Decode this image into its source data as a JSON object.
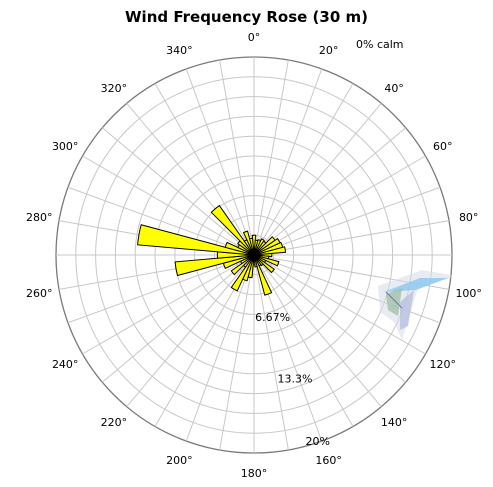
{
  "chart_data": {
    "type": "polar-bar",
    "title": "Wind Frequency Rose (30 m)",
    "calm_label": "0% calm",
    "angle_ticks": [
      "0°",
      "20°",
      "40°",
      "60°",
      "80°",
      "100°",
      "120°",
      "140°",
      "160°",
      "180°",
      "200°",
      "220°",
      "240°",
      "260°",
      "280°",
      "300°",
      "320°",
      "340°"
    ],
    "angle_tick_values": [
      0,
      20,
      40,
      60,
      80,
      100,
      120,
      140,
      160,
      180,
      200,
      220,
      240,
      260,
      280,
      300,
      320,
      340
    ],
    "radial_labels": [
      "6.67%",
      "13.3%",
      "20%"
    ],
    "radial_label_values": [
      6.67,
      13.3,
      20
    ],
    "r_max": 20,
    "sector_width_deg": 10,
    "bar_color": "#ffff00",
    "grid": true,
    "directions": [
      0,
      10,
      20,
      30,
      40,
      50,
      60,
      70,
      80,
      90,
      100,
      110,
      120,
      130,
      140,
      150,
      160,
      170,
      180,
      190,
      200,
      210,
      220,
      230,
      240,
      250,
      260,
      270,
      280,
      290,
      300,
      310,
      320,
      330,
      340,
      350
    ],
    "values": [
      2.0,
      1.5,
      1.6,
      1.8,
      1.7,
      2.6,
      2.9,
      3.0,
      3.2,
      1.8,
      1.5,
      2.6,
      1.3,
      2.5,
      1.3,
      1.2,
      4.2,
      1.2,
      1.0,
      2.3,
      2.7,
      4.0,
      1.5,
      2.8,
      1.5,
      3.2,
      8.0,
      3.7,
      11.8,
      3.0,
      1.8,
      2.0,
      6.1,
      1.7,
      2.5,
      1.7
    ]
  }
}
